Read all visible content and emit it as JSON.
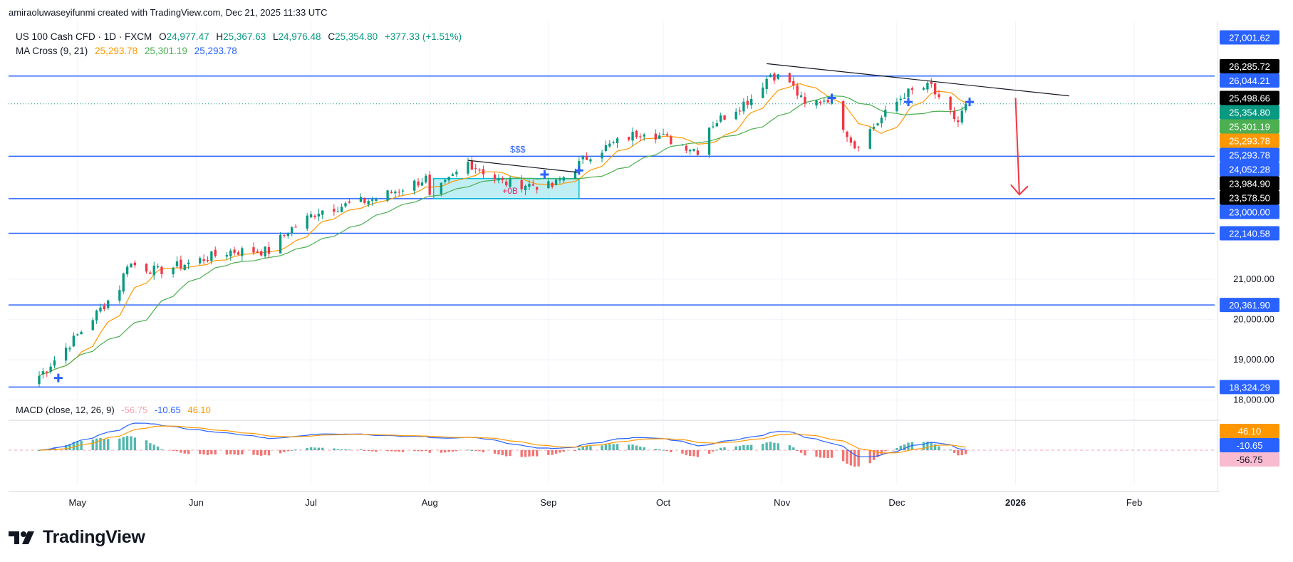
{
  "attribution": "amiraoluwaseyifunmi created with TradingView.com, Dec 21, 2025 11:33 UTC",
  "brand": "TradingView",
  "legend": {
    "symbol": "US 100 Cash CFD · 1D · FXCM",
    "open_label": "O",
    "open": "24,977.47",
    "high_label": "H",
    "high": "25,367.63",
    "low_label": "L",
    "low": "24,976.48",
    "close_label": "C",
    "close": "25,354.80",
    "change": "+377.33 (+1.51%)",
    "ma_name": "MA Cross (9, 21)",
    "ma_fast": "25,293.78",
    "ma_slow": "25,301.19",
    "ma_cross": "25,293.78",
    "macd_name": "MACD (close, 12, 26, 9)",
    "macd_hist": "-56.75",
    "macd_line": "-10.65",
    "macd_signal": "46.10"
  },
  "colors": {
    "up": "#089981",
    "down": "#f23645",
    "level": "#2962ff",
    "ma_fast": "#ff9800",
    "ma_slow": "#4caf50",
    "macd": "#2962ff",
    "signal": "#ff9800",
    "arrow": "#f23645",
    "zone": "#00bcd4",
    "text": "#131722"
  },
  "annotations": {
    "dollars": "$$$",
    "zone_label": "+0B"
  },
  "chart_data": {
    "type": "candlestick",
    "interval": "1D",
    "y_range": [
      17500,
      27400
    ],
    "y_ticks": [
      "21,000.00",
      "20,000.00",
      "19,000.00",
      "18,000.00"
    ],
    "x_labels": [
      "May",
      "Jun",
      "Jul",
      "Aug",
      "Sep",
      "Oct",
      "Nov",
      "Dec",
      "2026",
      "Feb"
    ],
    "x_dates": [
      "2025-05-01",
      "2025-06-01",
      "2025-07-01",
      "2025-08-01",
      "2025-09-01",
      "2025-10-01",
      "2025-11-01",
      "2025-12-01",
      "2026-01-01",
      "2026-02-01"
    ],
    "horizontal_levels": [
      26044.21,
      24052.28,
      23000.0,
      22140.58,
      20361.9,
      18324.29
    ],
    "price_labels": [
      {
        "text": "27,001.62",
        "bg": "#2962ff"
      },
      {
        "text": "26,285.72",
        "bg": "#000000"
      },
      {
        "text": "26,044.21",
        "bg": "#2962ff"
      },
      {
        "text": "25,498.66",
        "bg": "#000000"
      },
      {
        "text": "25,354.80",
        "bg": "#089981"
      },
      {
        "text": "25,301.19",
        "bg": "#4caf50"
      },
      {
        "text": "25,293.78",
        "bg": "#ff9800"
      },
      {
        "text": "25,293.78",
        "bg": "#2962ff"
      },
      {
        "text": "24,052.28",
        "bg": "#2962ff"
      },
      {
        "text": "23,984.90",
        "bg": "#000000"
      },
      {
        "text": "23,578.50",
        "bg": "#000000"
      },
      {
        "text": "23,000.00",
        "bg": "#2962ff"
      },
      {
        "text": "22,140.58",
        "bg": "#2962ff"
      },
      {
        "text": "20,361.90",
        "bg": "#2962ff"
      },
      {
        "text": "18,324.29",
        "bg": "#2962ff"
      }
    ],
    "macd_labels": [
      {
        "text": "46.10",
        "bg": "#ff9800"
      },
      {
        "text": "-10.65",
        "bg": "#2962ff"
      },
      {
        "text": "-56.75",
        "bg": "#f8bbd0"
      }
    ],
    "last_close": 25354.8,
    "series": [
      {
        "name": "MA 9",
        "color": "#ff9800"
      },
      {
        "name": "MA 21",
        "color": "#4caf50"
      }
    ],
    "anchor_prices": [
      [
        "2025-04-21",
        18600
      ],
      [
        "2025-04-30",
        19500
      ],
      [
        "2025-05-12",
        20800
      ],
      [
        "2025-05-14",
        21400
      ],
      [
        "2025-05-22",
        21200
      ],
      [
        "2025-05-30",
        21400
      ],
      [
        "2025-06-10",
        21700
      ],
      [
        "2025-06-20",
        21700
      ],
      [
        "2025-06-25",
        22200
      ],
      [
        "2025-07-03",
        22700
      ],
      [
        "2025-07-18",
        23000
      ],
      [
        "2025-07-31",
        23500
      ],
      [
        "2025-08-01",
        23000
      ],
      [
        "2025-08-11",
        23900
      ],
      [
        "2025-08-20",
        23400
      ],
      [
        "2025-09-02",
        23300
      ],
      [
        "2025-09-12",
        24100
      ],
      [
        "2025-09-26",
        24700
      ],
      [
        "2025-10-10",
        24200
      ],
      [
        "2025-10-13",
        24800
      ],
      [
        "2025-10-24",
        25500
      ],
      [
        "2025-10-29",
        26100
      ],
      [
        "2025-11-03",
        25900
      ],
      [
        "2025-11-07",
        25300
      ],
      [
        "2025-11-13",
        25500
      ],
      [
        "2025-11-20",
        24300
      ],
      [
        "2025-11-24",
        24700
      ],
      [
        "2025-12-03",
        25600
      ],
      [
        "2025-12-10",
        25800
      ],
      [
        "2025-12-12",
        25400
      ],
      [
        "2025-12-17",
        24900
      ],
      [
        "2025-12-19",
        25355
      ]
    ],
    "trendlines": [
      {
        "from": [
          "2025-08-11",
          23950
        ],
        "to": [
          "2025-09-09",
          23650
        ]
      },
      {
        "from": [
          "2025-10-28",
          26350
        ],
        "to": [
          "2026-01-15",
          25550
        ]
      }
    ],
    "zone": {
      "from": "2025-08-02",
      "to": "2025-09-09",
      "top": 23500,
      "bottom": 23000
    },
    "arrow": {
      "from": [
        "2026-01-01",
        25500
      ],
      "to": [
        "2026-01-02",
        23100
      ]
    },
    "cross_markers": [
      [
        "2025-04-26",
        18550
      ],
      [
        "2025-08-31",
        23600
      ],
      [
        "2025-09-09",
        23700
      ],
      [
        "2025-11-14",
        25500
      ],
      [
        "2025-12-04",
        25400
      ],
      [
        "2025-12-20",
        25400
      ]
    ]
  }
}
